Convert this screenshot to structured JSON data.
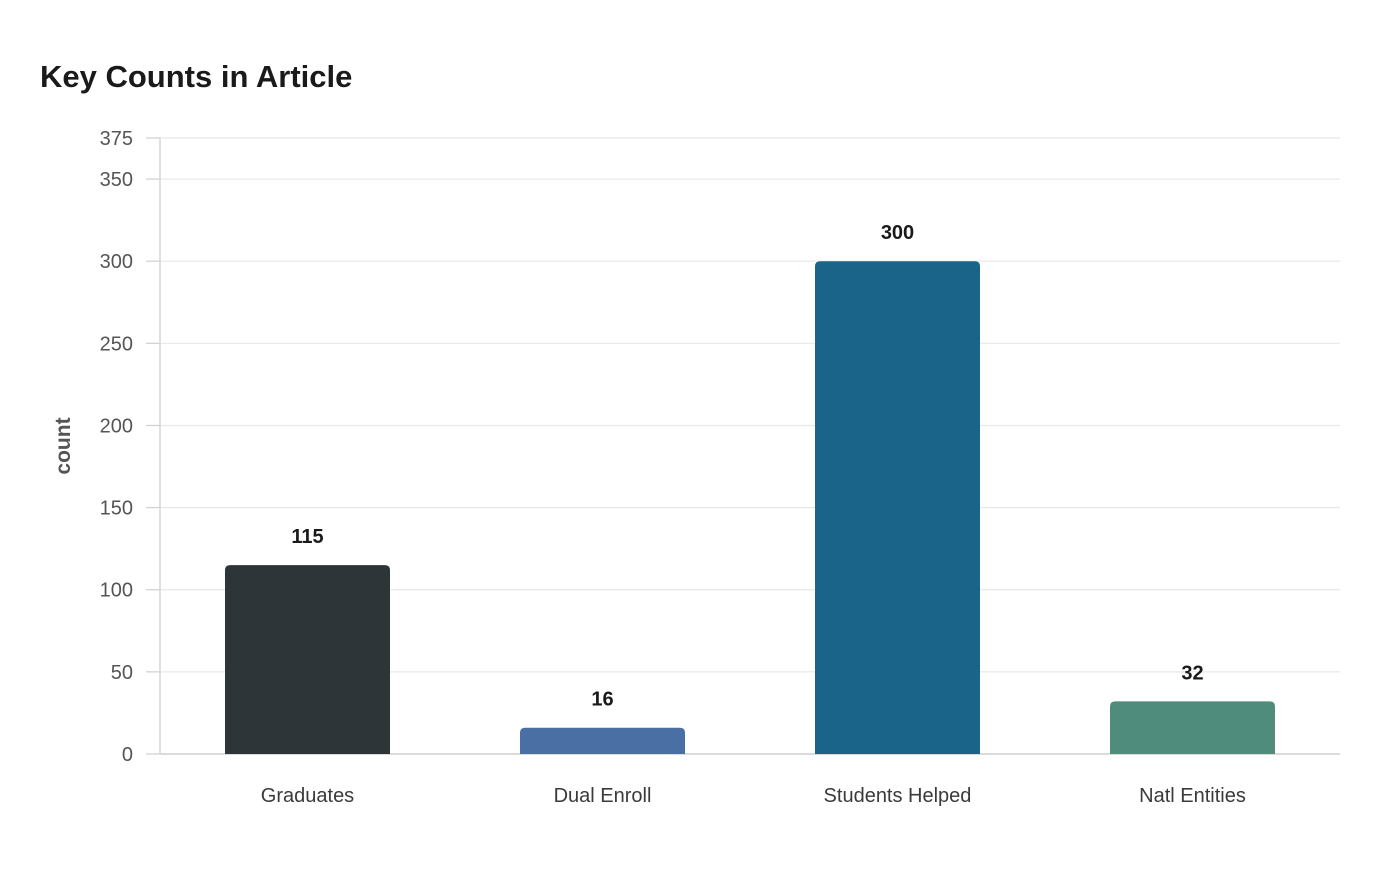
{
  "chart_data": {
    "type": "bar",
    "title": "Key Counts in Article",
    "xlabel": "",
    "ylabel": "count",
    "categories": [
      "Graduates",
      "Dual Enroll",
      "Students Helped",
      "Natl Entities"
    ],
    "values": [
      115,
      16,
      300,
      32
    ],
    "data_labels": [
      "115",
      "16",
      "300",
      "32"
    ],
    "bar_colors": [
      "#2e3538",
      "#4a6fa5",
      "#1a6389",
      "#4f8c7b"
    ],
    "ylim": [
      0,
      375
    ],
    "yticks": [
      0,
      50,
      100,
      150,
      200,
      250,
      300,
      350,
      375
    ],
    "ytick_labels": [
      "0",
      "50",
      "100",
      "150",
      "200",
      "250",
      "300",
      "350",
      "375"
    ],
    "grid": true,
    "legend": false
  }
}
